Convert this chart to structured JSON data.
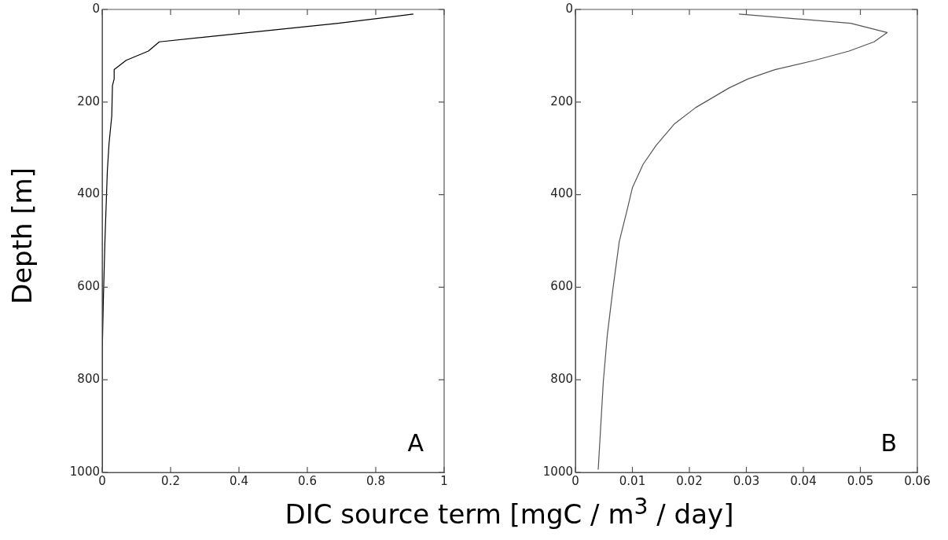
{
  "chart_data": [
    {
      "type": "line",
      "xlabel": "DIC source term [mgC / m$^{3}$ / day]",
      "ylabel": "Depth [m]",
      "annotations": [
        "A"
      ],
      "xlim": [
        0,
        1
      ],
      "xticks": [
        0,
        0.2,
        0.4,
        0.6,
        0.8,
        1
      ],
      "ylim": [
        1000,
        0
      ],
      "yticks": [
        0,
        200,
        400,
        600,
        800,
        1000
      ],
      "marker": "none",
      "line_style": "solid",
      "series": [
        {
          "color": "#000000",
          "x": [
            0.91,
            0.69,
            0.167,
            0.135,
            0.07,
            0.035,
            0.035,
            0.03,
            0.028,
            0.02,
            0.015,
            0.008,
            0.003,
            0,
            0
          ],
          "values": [
            10,
            30,
            70,
            90,
            110,
            130,
            150,
            165,
            230,
            290,
            350,
            500,
            640,
            750,
            1000
          ]
        }
      ]
    },
    {
      "type": "line",
      "annotations": [
        "B"
      ],
      "xlim": [
        0,
        0.06
      ],
      "xticks": [
        0,
        0.01,
        0.02,
        0.03,
        0.04,
        0.05,
        0.06
      ],
      "ylim": [
        1000,
        0
      ],
      "yticks": [
        0,
        200,
        400,
        600,
        800,
        1000
      ],
      "marker": "none",
      "line_style": "solid",
      "series": [
        {
          "color": "#555555",
          "x": [
            0.0287,
            0.0483,
            0.0547,
            0.0524,
            0.048,
            0.042,
            0.035,
            0.0303,
            0.0269,
            0.0211,
            0.0174,
            0.0142,
            0.0119,
            0.01,
            0.0091,
            0.0077,
            0.0066,
            0.0056,
            0.0049,
            0.004
          ],
          "values": [
            10,
            30,
            50,
            70,
            90,
            110,
            130,
            150,
            170,
            212,
            247,
            293,
            334,
            385,
            432,
            501,
            602,
            703,
            804,
            994
          ]
        }
      ]
    }
  ]
}
